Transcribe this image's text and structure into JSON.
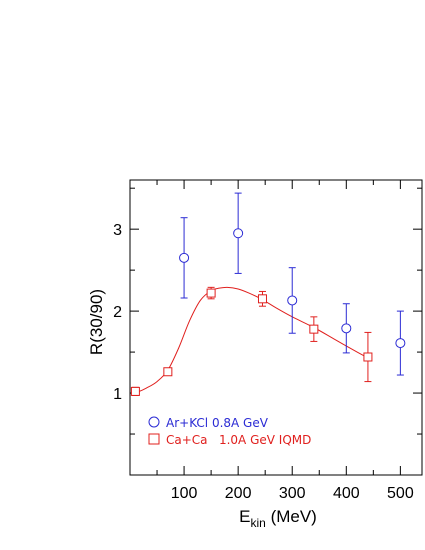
{
  "chart_data": {
    "type": "scatter",
    "xlabel": "E",
    "xlabel_sub": "kin",
    "xlabel_unit": " (MeV)",
    "ylabel": "R(30/90)",
    "xlim": [
      0,
      540
    ],
    "ylim": [
      0,
      3.6
    ],
    "x_ticks": [
      "100",
      "200",
      "300",
      "400",
      "500"
    ],
    "y_ticks": [
      "1",
      "2",
      "3"
    ],
    "grid": false,
    "legend_position": "bottom-left",
    "series": [
      {
        "name": "Ar+KCl 0.8A GeV",
        "marker": "circle",
        "color": "#2b2bd4",
        "x": [
          100,
          200,
          300,
          400,
          500
        ],
        "y": [
          2.65,
          2.95,
          2.13,
          1.79,
          1.61
        ],
        "err": [
          0.49,
          0.49,
          0.4,
          0.3,
          0.39
        ]
      },
      {
        "name": "Ca+Ca   1.0A GeV IQMD",
        "marker": "square",
        "color": "#e0201e",
        "x": [
          10,
          70,
          150,
          245,
          340,
          440
        ],
        "y": [
          1.02,
          1.26,
          2.22,
          2.15,
          1.78,
          1.44
        ],
        "err": [
          0.05,
          0.03,
          0.07,
          0.09,
          0.15,
          0.3
        ]
      }
    ],
    "fit_curve": {
      "color": "#e0201e",
      "x": [
        10,
        30,
        50,
        70,
        90,
        110,
        130,
        150,
        165,
        180,
        200,
        220,
        245,
        270,
        300,
        340,
        380,
        420,
        440
      ],
      "y": [
        1.0,
        1.06,
        1.14,
        1.28,
        1.55,
        1.88,
        2.13,
        2.25,
        2.28,
        2.29,
        2.27,
        2.22,
        2.14,
        2.04,
        1.93,
        1.8,
        1.65,
        1.5,
        1.43
      ]
    }
  }
}
